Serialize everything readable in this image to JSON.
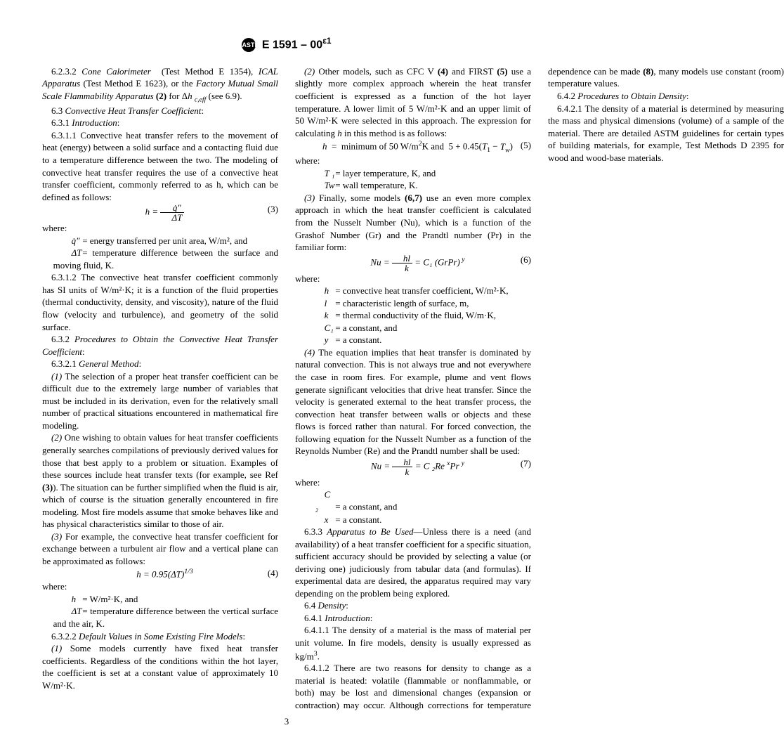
{
  "header": {
    "std_num": "E 1591 – 00",
    "eps": "ε1",
    "logo_text": "ASTM"
  },
  "col": {
    "p1": "6.2.3.2 Cone Calorimeter (Test Method E 1354), ICAL Apparatus (Test Method E 1623), or the Factory Mutual Small Scale Flammability Apparatus (2) for Δh c,eff (see 6.9).",
    "p2": "6.3 Convective Heat Transfer Coefficient:",
    "p3": "6.3.1 Introduction:",
    "p4": "6.3.1.1 Convective heat transfer refers to the movement of heat (energy) between a solid surface and a contacting fluid due to a temperature difference between the two. The modeling of convective heat transfer requires the use of a convective heat transfer coefficient, commonly referred to as h, which can be defined as follows:",
    "eq3": "h = ",
    "eq3_frac_n": "q̇″",
    "eq3_frac_d": "ΔT",
    "eq3_num": "(3)",
    "w1": "where:",
    "w1a_sym": "q̇″",
    "w1a": "= energy transferred per unit area, W/m², and",
    "w1b_sym": "ΔT",
    "w1b": "= temperature difference between the surface and moving fluid, K.",
    "p5": "6.3.1.2 The convective heat transfer coefficient commonly has SI units of W/m²·K; it is a function of the fluid properties (thermal conductivity, density, and viscosity), nature of the fluid flow (velocity and turbulence), and geometry of the solid surface.",
    "p6": "6.3.2 Procedures to Obtain the Convective Heat Transfer Coefficient:",
    "p7": "6.3.2.1 General Method:",
    "p8": "(1) The selection of a proper heat transfer coefficient can be difficult due to the extremely large number of variables that must be included in its derivation, even for the relatively small number of practical situations encountered in mathematical fire modeling.",
    "p9": "(2) One wishing to obtain values for heat transfer coefficients generally searches compilations of previously derived values for those that best apply to a problem or situation. Examples of these sources include heat transfer texts (for example, see Ref (3)). The situation can be further simplified when the fluid is air, which of course is the situation generally encountered in fire modeling. Most fire models assume that smoke behaves like and has physical characteristics similar to those of air.",
    "p10": "(3) For example, the convective heat transfer coefficient for exchange between a turbulent air flow and a vertical plane can be approximated as follows:",
    "eq4": "h = 0.95(ΔT)",
    "eq4_exp": "1/3",
    "eq4_num": "(4)",
    "w2": "where:",
    "w2a_sym": "h",
    "w2a": "= W/m²·K, and",
    "w2b_sym": "ΔT",
    "w2b": "= temperature difference between the vertical surface and the air, K.",
    "p11": "6.3.2.2 Default Values in Some Existing Fire Models:",
    "p12": "(1) Some models currently have fixed heat transfer coefficients. Regardless of the conditions within the hot layer, the coefficient is set at a constant value of approximately 10 W/m²·K.",
    "p13": "(2) Other models, such as CFC V (4) and FIRST (5) use a slightly more complex approach wherein the heat transfer coefficient is expressed as a function of the hot layer temperature. A lower limit of 5 W/m²·K and an upper limit of 50 W/m²·K were selected in this approach. The expression for calculating h in this method is as follows:",
    "eq5": "h  =  minimum of 50 W/m²K and  5 + 0.45(T₁ − Tw)",
    "eq5_num": "(5)",
    "w3": "where:",
    "w3a_sym": "T ₁",
    "w3a": "= layer temperature, K, and",
    "w3b_sym": "Tw",
    "w3b": "= wall temperature, K.",
    "p14": "(3) Finally, some models (6,7) use an even more complex approach in which the heat transfer coefficient is calculated from the Nusselt Number (Nu), which is a function of the Grashof Number (Gr) and the Prandtl number (Pr) in the familiar form:",
    "eq6_a": "Nu = ",
    "eq6_frac_n": "hl",
    "eq6_frac_d": "k",
    "eq6_b": " = C₁ (GrPr)",
    "eq6_exp": " y",
    "eq6_num": "(6)",
    "w4": "where:",
    "w4a_sym": "h",
    "w4a": "= convective heat transfer coefficient, W/m²·K,",
    "w4b_sym": "l",
    "w4b": "= characteristic length of surface, m,",
    "w4c_sym": "k",
    "w4c": "= thermal conductivity of the fluid, W/m·K,",
    "w4d_sym": "C₁",
    "w4d": "= a constant, and",
    "w4e_sym": "y",
    "w4e": "= a constant.",
    "p15": "(4) The equation implies that heat transfer is dominated by natural convection. This is not always true and not everywhere the case in room fires. For example, plume and vent flows generate significant velocities that drive heat transfer. Since the velocity is generated external to the heat transfer process, the convection heat transfer between walls or objects and these flows is forced rather than natural. For forced convection, the following equation for the Nusselt Number as a function of the Reynolds Number (Re) and the Prandtl number shall be used:",
    "eq7_a": "Nu = ",
    "eq7_frac_n": "hl",
    "eq7_frac_d": "k",
    "eq7_b": "  = C ₂Re ",
    "eq7_expx": "x",
    "eq7_b2": "Pr ",
    "eq7_expy": " y",
    "eq7_num": "(7)",
    "w5": "where:",
    "w5a_sym": "C ₂",
    "w5a": "= a constant, and",
    "w5b_sym": "x",
    "w5b": "= a constant.",
    "p16": "6.3.3 Apparatus to Be Used—Unless there is a need (and availability) of a heat transfer coefficient for a specific situation, sufficient accuracy should be provided by selecting a value (or deriving one) judiciously from tabular data (and formulas). If experimental data are desired, the apparatus required may vary depending on the problem being explored.",
    "p17": "6.4 Density:",
    "p18": "6.4.1 Introduction:",
    "p19": "6.4.1.1 The density of a material is the mass of material per unit volume. In fire models, density is usually expressed as kg/m³.",
    "p20": "6.4.1.2 There are two reasons for density to change as a material is heated: volatile (flammable or nonflammable, or both) may be lost and dimensional changes (expansion or contraction) may occur. Although corrections for temperature dependence can be made (8), many models use constant (room) temperature values.",
    "p21": "6.4.2 Procedures to Obtain Density:",
    "p22": "6.4.2.1 The density of a material is determined by measuring the mass and physical dimensions (volume) of a sample of the material. There are detailed ASTM guidelines for certain types of building materials, for example, Test Methods D 2395 for wood and wood-base materials."
  },
  "page_number": "3"
}
